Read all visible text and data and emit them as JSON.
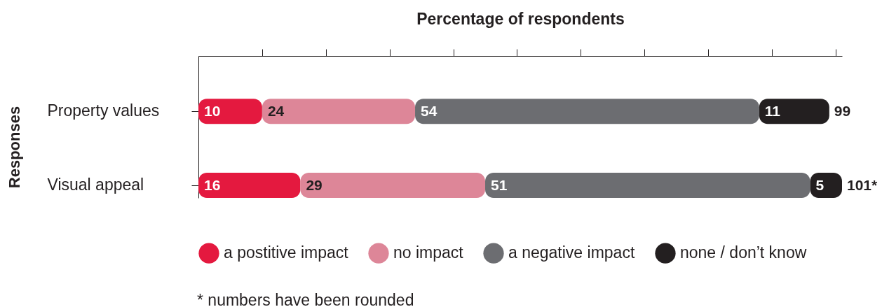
{
  "chart_data": {
    "type": "bar",
    "orientation": "horizontal",
    "stacked": true,
    "xlabel": "Percentage of respondents",
    "ylabel": "Responses",
    "categories": [
      "Property values",
      "Visual appeal"
    ],
    "series": [
      {
        "name": "a postitive impact",
        "color": "#e4193f",
        "values": [
          10,
          16
        ]
      },
      {
        "name": "no impact",
        "color": "#dd8698",
        "values": [
          24,
          29
        ]
      },
      {
        "name": "a negative impact",
        "color": "#6c6d71",
        "values": [
          54,
          51
        ]
      },
      {
        "name": "none / don’t know",
        "color": "#231f20",
        "values": [
          11,
          5
        ]
      }
    ],
    "xlim": [
      0,
      101
    ],
    "xticks": [
      {
        "value": 10,
        "label": null
      },
      {
        "value": 20,
        "label": null
      },
      {
        "value": 30,
        "label": null
      },
      {
        "value": 40,
        "label": null
      },
      {
        "value": 50,
        "label": null
      },
      {
        "value": 60,
        "label": null
      },
      {
        "value": 70,
        "label": null
      },
      {
        "value": 80,
        "label": null
      },
      {
        "value": 90,
        "label": null
      },
      {
        "value": 100,
        "label": null
      }
    ],
    "tick_labels": "y",
    "data_labels": true,
    "totals": [
      "99",
      "101*"
    ],
    "legend": "bottom",
    "annotations": [
      "* numbers have been rounded"
    ]
  }
}
